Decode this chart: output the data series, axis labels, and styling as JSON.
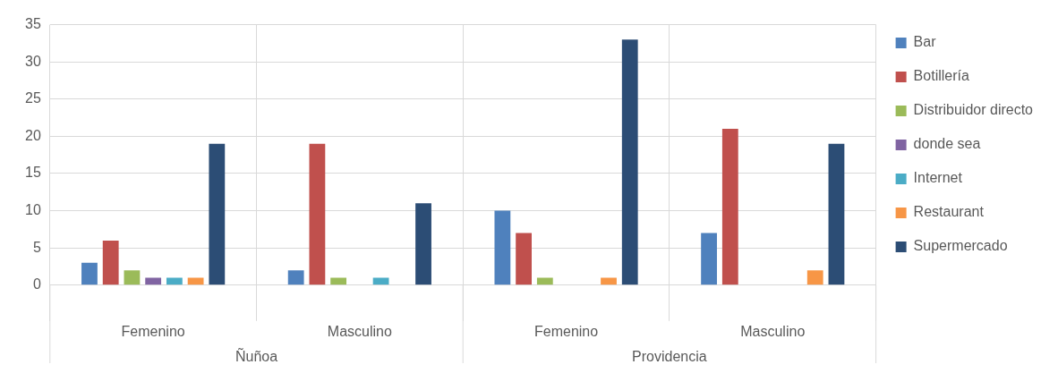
{
  "chart_data": {
    "type": "bar",
    "categories": [
      "Femenino",
      "Masculino",
      "Femenino",
      "Masculino"
    ],
    "series": [
      {
        "name": "Bar",
        "color": "#4f81bd",
        "values": [
          3,
          2,
          10,
          7
        ]
      },
      {
        "name": "Botillería",
        "color": "#c0504d",
        "values": [
          6,
          19,
          7,
          21
        ]
      },
      {
        "name": "Distribuidor directo",
        "color": "#9bbb59",
        "values": [
          2,
          1,
          1,
          null
        ]
      },
      {
        "name": "donde sea",
        "color": "#8064a2",
        "values": [
          1,
          null,
          null,
          null
        ]
      },
      {
        "name": "Internet",
        "color": "#4bacc6",
        "values": [
          1,
          1,
          null,
          null
        ]
      },
      {
        "name": "Restaurant",
        "color": "#f79646",
        "values": [
          1,
          null,
          1,
          2
        ]
      },
      {
        "name": "Supermercado",
        "color": "#2c4d75",
        "values": [
          19,
          11,
          33,
          19
        ]
      }
    ],
    "annotations": [
      "Ñuñoa",
      "Providencia"
    ],
    "ylim": [
      0,
      35
    ],
    "yticks": [
      0,
      5,
      10,
      15,
      20,
      25,
      30,
      35
    ],
    "grid": true,
    "legend": "right"
  }
}
